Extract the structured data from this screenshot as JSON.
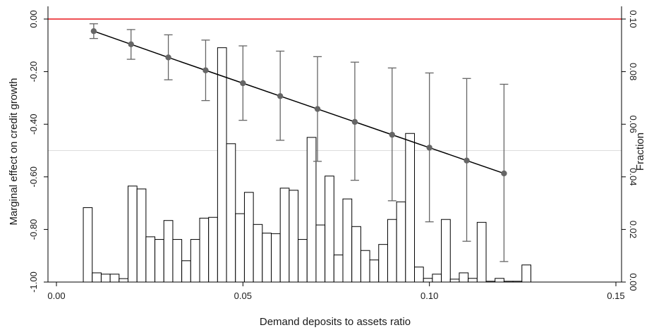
{
  "chart_data": {
    "type": "line",
    "title": "",
    "xlabel": "Demand deposits to assets ratio",
    "ylabel": "Marginal effect on credit growth",
    "y2label": "Fraction",
    "xlim": [
      0,
      0.15
    ],
    "ylim": [
      -1.0,
      0.0
    ],
    "y2lim": [
      0,
      0.1
    ],
    "x_ticks": [
      {
        "value": 0,
        "label": "0.00"
      },
      {
        "value": 0.05,
        "label": "0.05"
      },
      {
        "value": 0.1,
        "label": "0.10"
      },
      {
        "value": 0.15,
        "label": "0.15"
      }
    ],
    "y_ticks": [
      {
        "value": 0,
        "label": "0.00"
      },
      {
        "value": -0.2,
        "label": "-0.20"
      },
      {
        "value": -0.4,
        "label": "-0.40"
      },
      {
        "value": -0.6,
        "label": "-0.60"
      },
      {
        "value": -0.8,
        "label": "-0.80"
      },
      {
        "value": -1.0,
        "label": "-1.00"
      }
    ],
    "y2_ticks": [
      {
        "value": 0,
        "label": "0.00"
      },
      {
        "value": 0.02,
        "label": "0.02"
      },
      {
        "value": 0.04,
        "label": "0.04"
      },
      {
        "value": 0.06,
        "label": "0.06"
      },
      {
        "value": 0.08,
        "label": "0.08"
      },
      {
        "value": 0.1,
        "label": "0.10"
      }
    ],
    "grid_y": [
      -0.5,
      -1.0
    ],
    "reference_line_y": 0,
    "colors": {
      "reference_line": "#e8161b",
      "point": "#666666",
      "line": "#000000",
      "errorbar": "#666666",
      "bar_edge": "#000000",
      "grid": "#dcdcdc"
    },
    "marginal_effect": {
      "x": [
        0.01,
        0.02,
        0.03,
        0.04,
        0.05,
        0.06,
        0.07,
        0.08,
        0.09,
        0.1,
        0.11,
        0.12
      ],
      "estimate": [
        -0.046,
        -0.096,
        -0.146,
        -0.195,
        -0.244,
        -0.293,
        -0.342,
        -0.391,
        -0.44,
        -0.489,
        -0.538,
        -0.587
      ],
      "ci_low": [
        -0.074,
        -0.153,
        -0.231,
        -0.31,
        -0.385,
        -0.461,
        -0.541,
        -0.613,
        -0.691,
        -0.771,
        -0.845,
        -0.922
      ],
      "ci_high": [
        -0.018,
        -0.04,
        -0.06,
        -0.08,
        -0.102,
        -0.122,
        -0.143,
        -0.164,
        -0.186,
        -0.205,
        -0.226,
        -0.248
      ]
    },
    "histogram": {
      "bin_width": 0.0024,
      "bin_start": [
        0.0072,
        0.0096,
        0.012,
        0.0144,
        0.0168,
        0.0192,
        0.0216,
        0.024,
        0.0264,
        0.0288,
        0.0312,
        0.0336,
        0.036,
        0.0384,
        0.0408,
        0.0432,
        0.0456,
        0.048,
        0.0504,
        0.0528,
        0.0552,
        0.0576,
        0.06,
        0.0624,
        0.0648,
        0.0672,
        0.0696,
        0.072,
        0.0744,
        0.0768,
        0.0792,
        0.0816,
        0.084,
        0.0864,
        0.0888,
        0.0912,
        0.0936,
        0.096,
        0.0984,
        0.1008,
        0.1032,
        0.1056,
        0.108,
        0.1104,
        0.1128,
        0.1152,
        0.1176,
        0.12,
        0.1224,
        0.1248
      ],
      "fraction": [
        0.0283,
        0.0035,
        0.003,
        0.003,
        0.0013,
        0.0365,
        0.0354,
        0.0172,
        0.0162,
        0.0234,
        0.0162,
        0.0081,
        0.0162,
        0.0243,
        0.0246,
        0.0891,
        0.0526,
        0.026,
        0.0341,
        0.0219,
        0.0186,
        0.0184,
        0.0357,
        0.0349,
        0.0162,
        0.055,
        0.0217,
        0.0403,
        0.0103,
        0.0316,
        0.0211,
        0.012,
        0.0084,
        0.0143,
        0.0238,
        0.0305,
        0.0565,
        0.0057,
        0.0014,
        0.003,
        0.0238,
        0.0011,
        0.0035,
        0.0014,
        0.0227,
        0.0003,
        0.0014,
        0.0003,
        0.0003,
        0.0065
      ]
    }
  }
}
